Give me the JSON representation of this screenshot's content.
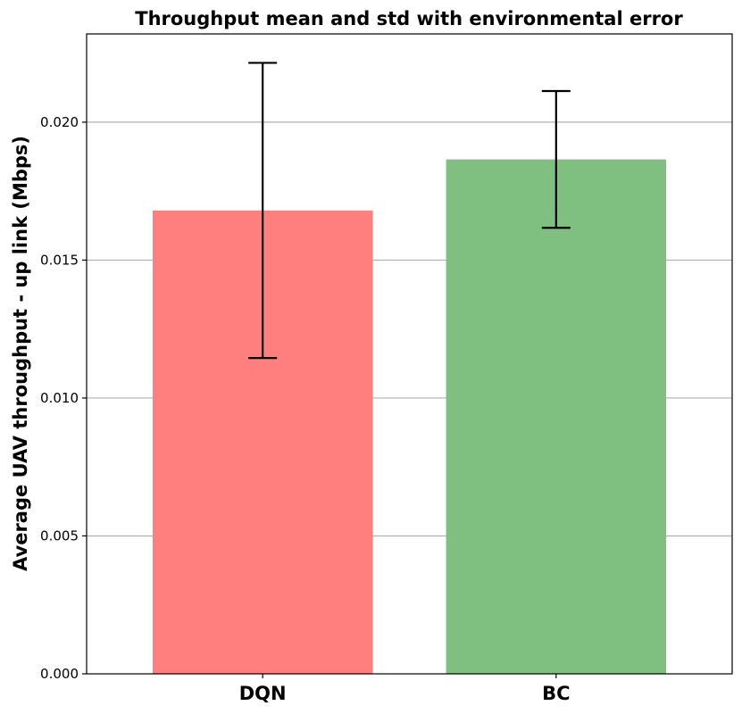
{
  "chart_data": {
    "type": "bar",
    "title": "Throughput mean and std with environmental error",
    "xlabel": "",
    "ylabel": "Average UAV throughput - up link (Mbps)",
    "categories": [
      "DQN",
      "BC"
    ],
    "values": [
      0.0168,
      0.01865
    ],
    "error": [
      0.00535,
      0.00248
    ],
    "bar_colors": [
      "#ff7f7f",
      "#7fbf7f"
    ],
    "errorbar_color": "#000000",
    "grid_color": "#b0b0b0",
    "ylim": [
      0,
      0.0232
    ],
    "yticks": [
      0.0,
      0.005,
      0.01,
      0.015,
      0.02
    ],
    "ytick_labels": [
      "0.000",
      "0.005",
      "0.010",
      "0.015",
      "0.020"
    ],
    "grid": "y-major"
  }
}
